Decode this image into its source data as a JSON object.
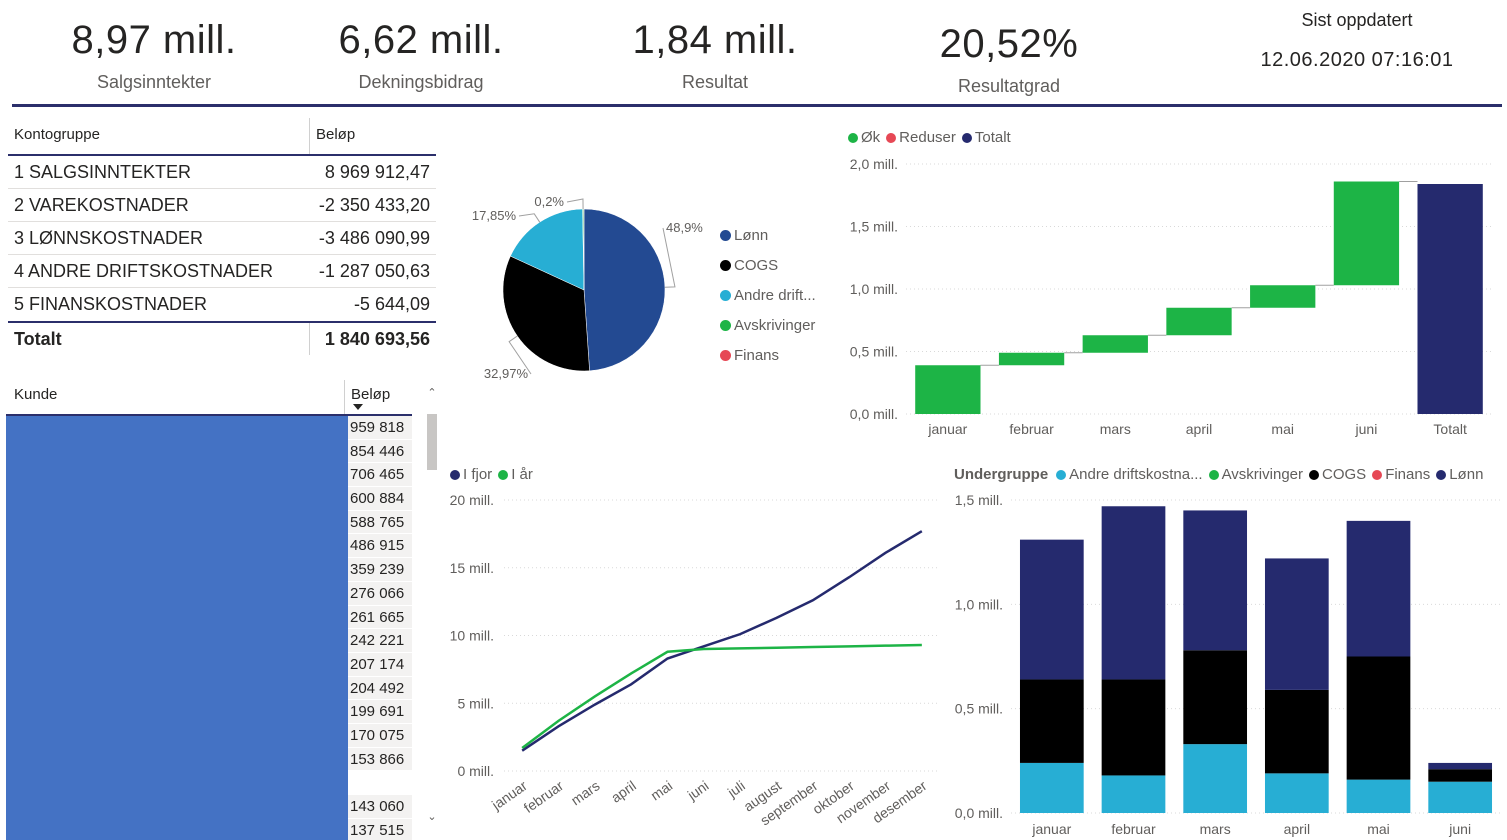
{
  "kpis": [
    {
      "value": "8,97 mill.",
      "label": "Salgsinntekter"
    },
    {
      "value": "6,62 mill.",
      "label": "Dekningsbidrag"
    },
    {
      "value": "1,84 mill.",
      "label": "Resultat"
    },
    {
      "value": "20,52%",
      "label": "Resultatgrad"
    }
  ],
  "updated": {
    "title": "Sist oppdatert",
    "value": "12.06.2020 07:16:01"
  },
  "konto_table": {
    "headers": [
      "Kontogruppe",
      "Beløp"
    ],
    "rows": [
      {
        "name": "1 SALGSINNTEKTER",
        "amount": "8 969 912,47"
      },
      {
        "name": "2 VAREKOSTNADER",
        "amount": "-2 350 433,20"
      },
      {
        "name": "3 LØNNSKOSTNADER",
        "amount": "-3 486 090,99"
      },
      {
        "name": "4 ANDRE DRIFTSKOSTNADER",
        "amount": "-1 287 050,63"
      },
      {
        "name": "5 FINANSKOSTNADER",
        "amount": "-5 644,09"
      }
    ],
    "total": {
      "name": "Totalt",
      "amount": "1 840 693,56"
    }
  },
  "kunde_table": {
    "headers": [
      "Kunde",
      "Beløp"
    ],
    "values": [
      "959 818",
      "854 446",
      "706 465",
      "600 884",
      "588 765",
      "486 915",
      "359 239",
      "276 066",
      "261 665",
      "242 221",
      "207 174",
      "204 492",
      "199 691",
      "170 075",
      "153 866",
      "",
      "143 060",
      "137 515"
    ]
  },
  "colors": {
    "navy": "#252A6E",
    "pie_blue": "#234A92",
    "black": "#000000",
    "cyan": "#27AED4",
    "green": "#1DB446",
    "red": "#E64855",
    "kunde_blue": "#4472C4"
  },
  "chart_data": [
    {
      "type": "pie",
      "title": "",
      "slices": [
        {
          "name": "Lønn",
          "value": 48.9,
          "label": "48,9%",
          "color": "#234A92"
        },
        {
          "name": "COGS",
          "value": 32.97,
          "label": "32,97%",
          "color": "#000000"
        },
        {
          "name": "Andre drift...",
          "value": 17.85,
          "label": "17,85%",
          "color": "#27AED4"
        },
        {
          "name": "Avskrivinger",
          "value": 0.2,
          "label": "0,2%",
          "color": "#1DB446"
        },
        {
          "name": "Finans",
          "value": 0.08,
          "label": "",
          "color": "#E64855"
        }
      ],
      "legend": [
        "Lønn",
        "COGS",
        "Andre drift...",
        "Avskrivinger",
        "Finans"
      ]
    },
    {
      "type": "bar",
      "subtype": "waterfall",
      "legend": [
        {
          "name": "Øk",
          "color": "#1DB446"
        },
        {
          "name": "Reduser",
          "color": "#E64855"
        },
        {
          "name": "Totalt",
          "color": "#252A6E"
        }
      ],
      "categories": [
        "januar",
        "februar",
        "mars",
        "april",
        "mai",
        "juni",
        "Totalt"
      ],
      "values": [
        0.39,
        0.1,
        0.14,
        0.22,
        0.18,
        0.83,
        1.84
      ],
      "ylim": [
        0,
        2.0
      ],
      "yticks": [
        {
          "value": 0,
          "label": "0,0 mill."
        },
        {
          "value": 0.5,
          "label": "0,5 mill."
        },
        {
          "value": 1.0,
          "label": "1,0 mill."
        },
        {
          "value": 1.5,
          "label": "1,5 mill."
        },
        {
          "value": 2.0,
          "label": "2,0 mill."
        }
      ]
    },
    {
      "type": "line",
      "legend": [
        {
          "name": "I fjor",
          "color": "#252A6E"
        },
        {
          "name": "I år",
          "color": "#1DB446"
        }
      ],
      "categories": [
        "januar",
        "februar",
        "mars",
        "april",
        "mai",
        "juni",
        "juli",
        "august",
        "september",
        "oktober",
        "november",
        "desember"
      ],
      "series": [
        {
          "name": "I fjor",
          "color": "#252A6E",
          "values": [
            1.5,
            3.3,
            4.9,
            6.4,
            8.3,
            9.2,
            10.1,
            11.3,
            12.6,
            14.3,
            16.1,
            17.7
          ]
        },
        {
          "name": "I år",
          "color": "#1DB446",
          "values": [
            1.7,
            3.7,
            5.5,
            7.2,
            8.8,
            9.0,
            9.05,
            9.1,
            9.15,
            9.2,
            9.25,
            9.3
          ]
        }
      ],
      "ylim": [
        0,
        20
      ],
      "yticks": [
        {
          "value": 0,
          "label": "0 mill."
        },
        {
          "value": 5,
          "label": "5 mill."
        },
        {
          "value": 10,
          "label": "10 mill."
        },
        {
          "value": 15,
          "label": "15 mill."
        },
        {
          "value": 20,
          "label": "20 mill."
        }
      ]
    },
    {
      "type": "bar",
      "subtype": "stacked",
      "legend_title": "Undergruppe",
      "legend": [
        {
          "name": "Andre driftskostna...",
          "color": "#27AED4"
        },
        {
          "name": "Avskrivinger",
          "color": "#1DB446"
        },
        {
          "name": "COGS",
          "color": "#000000"
        },
        {
          "name": "Finans",
          "color": "#E64855"
        },
        {
          "name": "Lønn",
          "color": "#252A6E"
        }
      ],
      "categories": [
        "januar",
        "februar",
        "mars",
        "april",
        "mai",
        "juni"
      ],
      "series": [
        {
          "name": "Andre driftskostnader",
          "color": "#27AED4",
          "values": [
            0.24,
            0.18,
            0.33,
            0.19,
            0.16,
            0.15
          ]
        },
        {
          "name": "COGS",
          "color": "#000000",
          "values": [
            0.4,
            0.46,
            0.45,
            0.4,
            0.59,
            0.06
          ]
        },
        {
          "name": "Lønn",
          "color": "#252A6E",
          "values": [
            0.67,
            0.83,
            0.67,
            0.63,
            0.65,
            0.03
          ]
        }
      ],
      "ylim": [
        0,
        1.5
      ],
      "yticks": [
        {
          "value": 0,
          "label": "0,0 mill."
        },
        {
          "value": 0.5,
          "label": "0,5 mill."
        },
        {
          "value": 1.0,
          "label": "1,0 mill."
        },
        {
          "value": 1.5,
          "label": "1,5 mill."
        }
      ]
    }
  ]
}
